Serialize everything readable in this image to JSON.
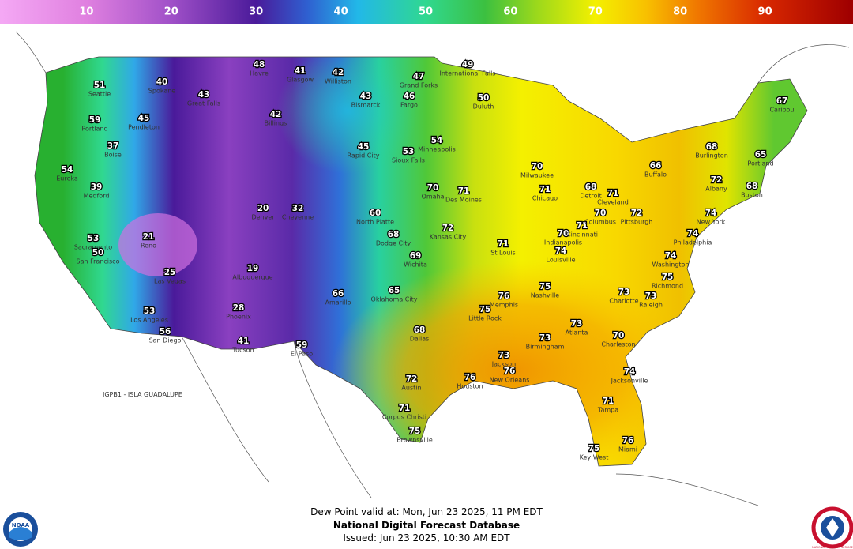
{
  "chart_data": {
    "type": "map",
    "colorbar": {
      "xlim": [
        0,
        100
      ],
      "xticks": [
        10,
        20,
        30,
        40,
        50,
        60,
        70,
        80,
        90
      ],
      "stops": [
        {
          "value": 0,
          "color": "#f4a8f4"
        },
        {
          "value": 10,
          "color": "#e080e0"
        },
        {
          "value": 20,
          "color": "#a050c8"
        },
        {
          "value": 30,
          "color": "#4a1a9a"
        },
        {
          "value": 36,
          "color": "#2f5fd0"
        },
        {
          "value": 42,
          "color": "#22b8e8"
        },
        {
          "value": 50,
          "color": "#30d890"
        },
        {
          "value": 57,
          "color": "#3cc040"
        },
        {
          "value": 63,
          "color": "#9ad81c"
        },
        {
          "value": 70,
          "color": "#f4f000"
        },
        {
          "value": 76,
          "color": "#f8c000"
        },
        {
          "value": 82,
          "color": "#f07800"
        },
        {
          "value": 90,
          "color": "#d82800"
        },
        {
          "value": 100,
          "color": "#a00000"
        }
      ]
    },
    "stations": [
      {
        "name": "Seattle",
        "value": 51
      },
      {
        "name": "Portland",
        "value": 59
      },
      {
        "name": "Spokane",
        "value": 40
      },
      {
        "name": "Pendleton",
        "value": 45
      },
      {
        "name": "Great Falls",
        "value": 43
      },
      {
        "name": "Havre",
        "value": 48
      },
      {
        "name": "Glasgow",
        "value": 41
      },
      {
        "name": "Williston",
        "value": 42
      },
      {
        "name": "Billings",
        "value": 42
      },
      {
        "name": "Bismarck",
        "value": 43
      },
      {
        "name": "Grand Forks",
        "value": 47
      },
      {
        "name": "Fargo",
        "value": 46
      },
      {
        "name": "International Falls",
        "value": 49
      },
      {
        "name": "Duluth",
        "value": 50
      },
      {
        "name": "Eureka",
        "value": 54
      },
      {
        "name": "Medford",
        "value": 39
      },
      {
        "name": "Boise",
        "value": 37
      },
      {
        "name": "Sacramento",
        "value": 53
      },
      {
        "name": "San Francisco",
        "value": 50
      },
      {
        "name": "Reno",
        "value": 21
      },
      {
        "name": "Las Vegas",
        "value": 25
      },
      {
        "name": "Los Angeles",
        "value": 53
      },
      {
        "name": "San Diego",
        "value": 56
      },
      {
        "name": "Phoenix",
        "value": 28
      },
      {
        "name": "Tucson",
        "value": 41
      },
      {
        "name": "Albuquerque",
        "value": 19
      },
      {
        "name": "El Paso",
        "value": 59
      },
      {
        "name": "Denver",
        "value": 20
      },
      {
        "name": "Cheyenne",
        "value": 32
      },
      {
        "name": "Rapid City",
        "value": 45
      },
      {
        "name": "Sioux Falls",
        "value": 53
      },
      {
        "name": "Minneapolis",
        "value": 54
      },
      {
        "name": "North Platte",
        "value": 60
      },
      {
        "name": "Omaha",
        "value": 70
      },
      {
        "name": "Des Moines",
        "value": 71
      },
      {
        "name": "Dodge City",
        "value": 68
      },
      {
        "name": "Wichita",
        "value": 69
      },
      {
        "name": "Kansas City",
        "value": 72
      },
      {
        "name": "Amarillo",
        "value": 66
      },
      {
        "name": "Oklahoma City",
        "value": 65
      },
      {
        "name": "Dallas",
        "value": 68
      },
      {
        "name": "Austin",
        "value": 72
      },
      {
        "name": "Houston",
        "value": 76
      },
      {
        "name": "Corpus Christi",
        "value": 71
      },
      {
        "name": "Brownsville",
        "value": 75
      },
      {
        "name": "Little Rock",
        "value": 75
      },
      {
        "name": "Memphis",
        "value": 76
      },
      {
        "name": "Jackson",
        "value": 73
      },
      {
        "name": "New Orleans",
        "value": 76
      },
      {
        "name": "Nashville",
        "value": 75
      },
      {
        "name": "Birmingham",
        "value": 73
      },
      {
        "name": "Atlanta",
        "value": 73
      },
      {
        "name": "St Louis",
        "value": 71
      },
      {
        "name": "Chicago",
        "value": 71
      },
      {
        "name": "Milwaukee",
        "value": 70
      },
      {
        "name": "Indianapolis",
        "value": 70
      },
      {
        "name": "Louisville",
        "value": 74
      },
      {
        "name": "Cincinnati",
        "value": 71
      },
      {
        "name": "Columbus",
        "value": 70
      },
      {
        "name": "Detroit",
        "value": 68
      },
      {
        "name": "Cleveland",
        "value": 71
      },
      {
        "name": "Pittsburgh",
        "value": 72
      },
      {
        "name": "Buffalo",
        "value": 66
      },
      {
        "name": "Charlotte",
        "value": 73
      },
      {
        "name": "Raleigh",
        "value": 73
      },
      {
        "name": "Charleston",
        "value": 70
      },
      {
        "name": "Jacksonville",
        "value": 74
      },
      {
        "name": "Tampa",
        "value": 71
      },
      {
        "name": "Miami",
        "value": 76
      },
      {
        "name": "Key West",
        "value": 75
      },
      {
        "name": "Richmond",
        "value": 75
      },
      {
        "name": "Washington",
        "value": 74
      },
      {
        "name": "Philadelphia",
        "value": 74
      },
      {
        "name": "New York",
        "value": 74
      },
      {
        "name": "Albany",
        "value": 72
      },
      {
        "name": "Burlington",
        "value": 68
      },
      {
        "name": "Boston",
        "value": 68
      },
      {
        "name": "Portland",
        "value": 65
      },
      {
        "name": "Caribou",
        "value": 67
      }
    ],
    "offshore_label": "IGPB1 - ISLA GUADALUPE",
    "valid_text": "Dew Point valid at: Mon, Jun 23 2025, 11 PM EDT",
    "title": "National Digital Forecast Database",
    "issued_text": "Issued: Jun 23 2025, 10:30 AM EDT",
    "logos": [
      "NOAA",
      "NATIONAL WEATHER SERVICE"
    ]
  }
}
